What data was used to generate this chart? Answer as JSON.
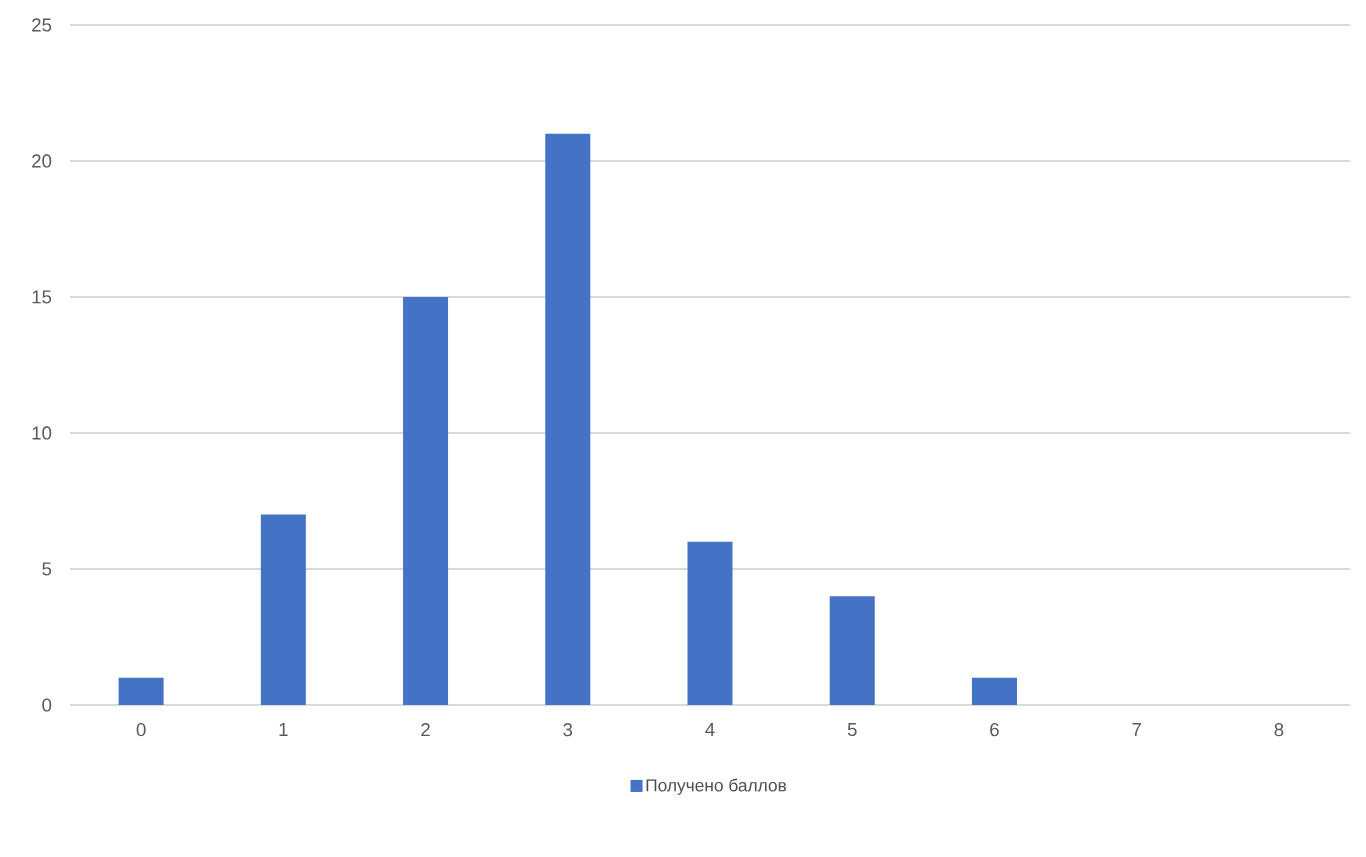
{
  "chart_data": {
    "type": "bar",
    "categories": [
      "0",
      "1",
      "2",
      "3",
      "4",
      "5",
      "6",
      "7",
      "8"
    ],
    "series": [
      {
        "name": "Получено баллов",
        "color": "#4472c4",
        "values": [
          1,
          7,
          15,
          21,
          6,
          4,
          1,
          0,
          0
        ]
      }
    ],
    "ylim": [
      0,
      25
    ],
    "yticks": [
      0,
      5,
      10,
      15,
      20,
      25
    ],
    "grid": "y",
    "legend": "bottom"
  }
}
